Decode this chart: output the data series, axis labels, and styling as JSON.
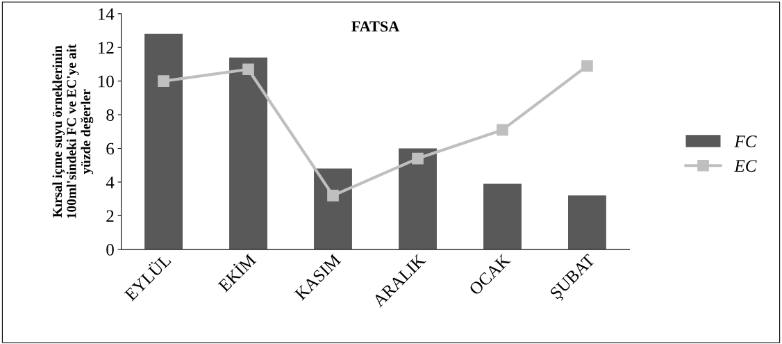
{
  "chart_data": {
    "type": "bar",
    "title": "FATSA",
    "ylabel": "Kırsal içme suyu örneklerinin\n100ml'sindeki FC ve EC'ye ait\nyüzde değerler",
    "categories": [
      "EYLÜL",
      "EKİM",
      "KASIM",
      "ARALIK",
      "OCAK",
      "ŞUBAT"
    ],
    "series": [
      {
        "name": "FC",
        "color": "#595959",
        "values": [
          12.8,
          11.4,
          4.8,
          6.0,
          3.9,
          3.2
        ]
      },
      {
        "name": "EC",
        "type": "line",
        "color": "#bfbfbf",
        "marker": "square",
        "values": [
          10.0,
          10.7,
          3.2,
          5.4,
          7.1,
          10.9
        ]
      }
    ],
    "ylim": [
      0,
      14
    ],
    "yticks": [
      0,
      2,
      4,
      6,
      8,
      10,
      12,
      14
    ],
    "grid": false,
    "legend": "right"
  }
}
